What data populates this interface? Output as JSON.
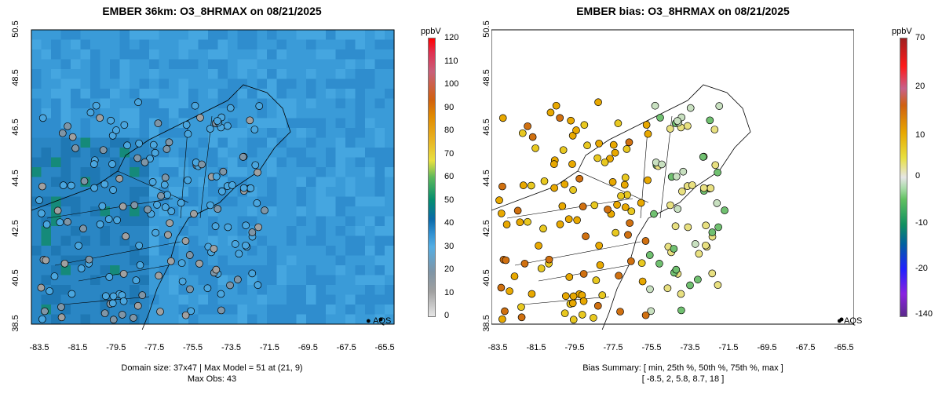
{
  "left": {
    "title": "EMBER 36km: O3_8HRMAX on 08/21/2025",
    "colorbar_unit": "ppbV",
    "colorbar_ticks": [
      "120",
      "110",
      "100",
      "90",
      "80",
      "70",
      "60",
      "50",
      "40",
      "30",
      "20",
      "10",
      "0"
    ],
    "legend": "AQS",
    "footer_line1": "Domain size: 37x47 | Max Model = 51 at (21, 9)",
    "footer_line2": "Max Obs: 43"
  },
  "right": {
    "title": "EMBER bias: O3_8HRMAX on 08/21/2025",
    "colorbar_unit": "ppbV",
    "colorbar_ticks": [
      "70",
      "20",
      "10",
      "0",
      "-10",
      "-20",
      "-140"
    ],
    "legend": "AQS",
    "footer_line1": "Bias Summary: [ min, 25th %, 50th %, 75th %, max ]",
    "footer_line2": "[ -8.5,   2,   5.8,   8.7,   18 ]"
  },
  "axes": {
    "y_ticks": [
      "50.5",
      "48.5",
      "46.5",
      "44.5",
      "42.5",
      "40.5",
      "38.5"
    ],
    "x_ticks": [
      "-83.5",
      "-81.5",
      "-79.5",
      "-77.5",
      "-75.5",
      "-73.5",
      "-71.5",
      "-69.5",
      "-67.5",
      "-65.5"
    ]
  }
}
